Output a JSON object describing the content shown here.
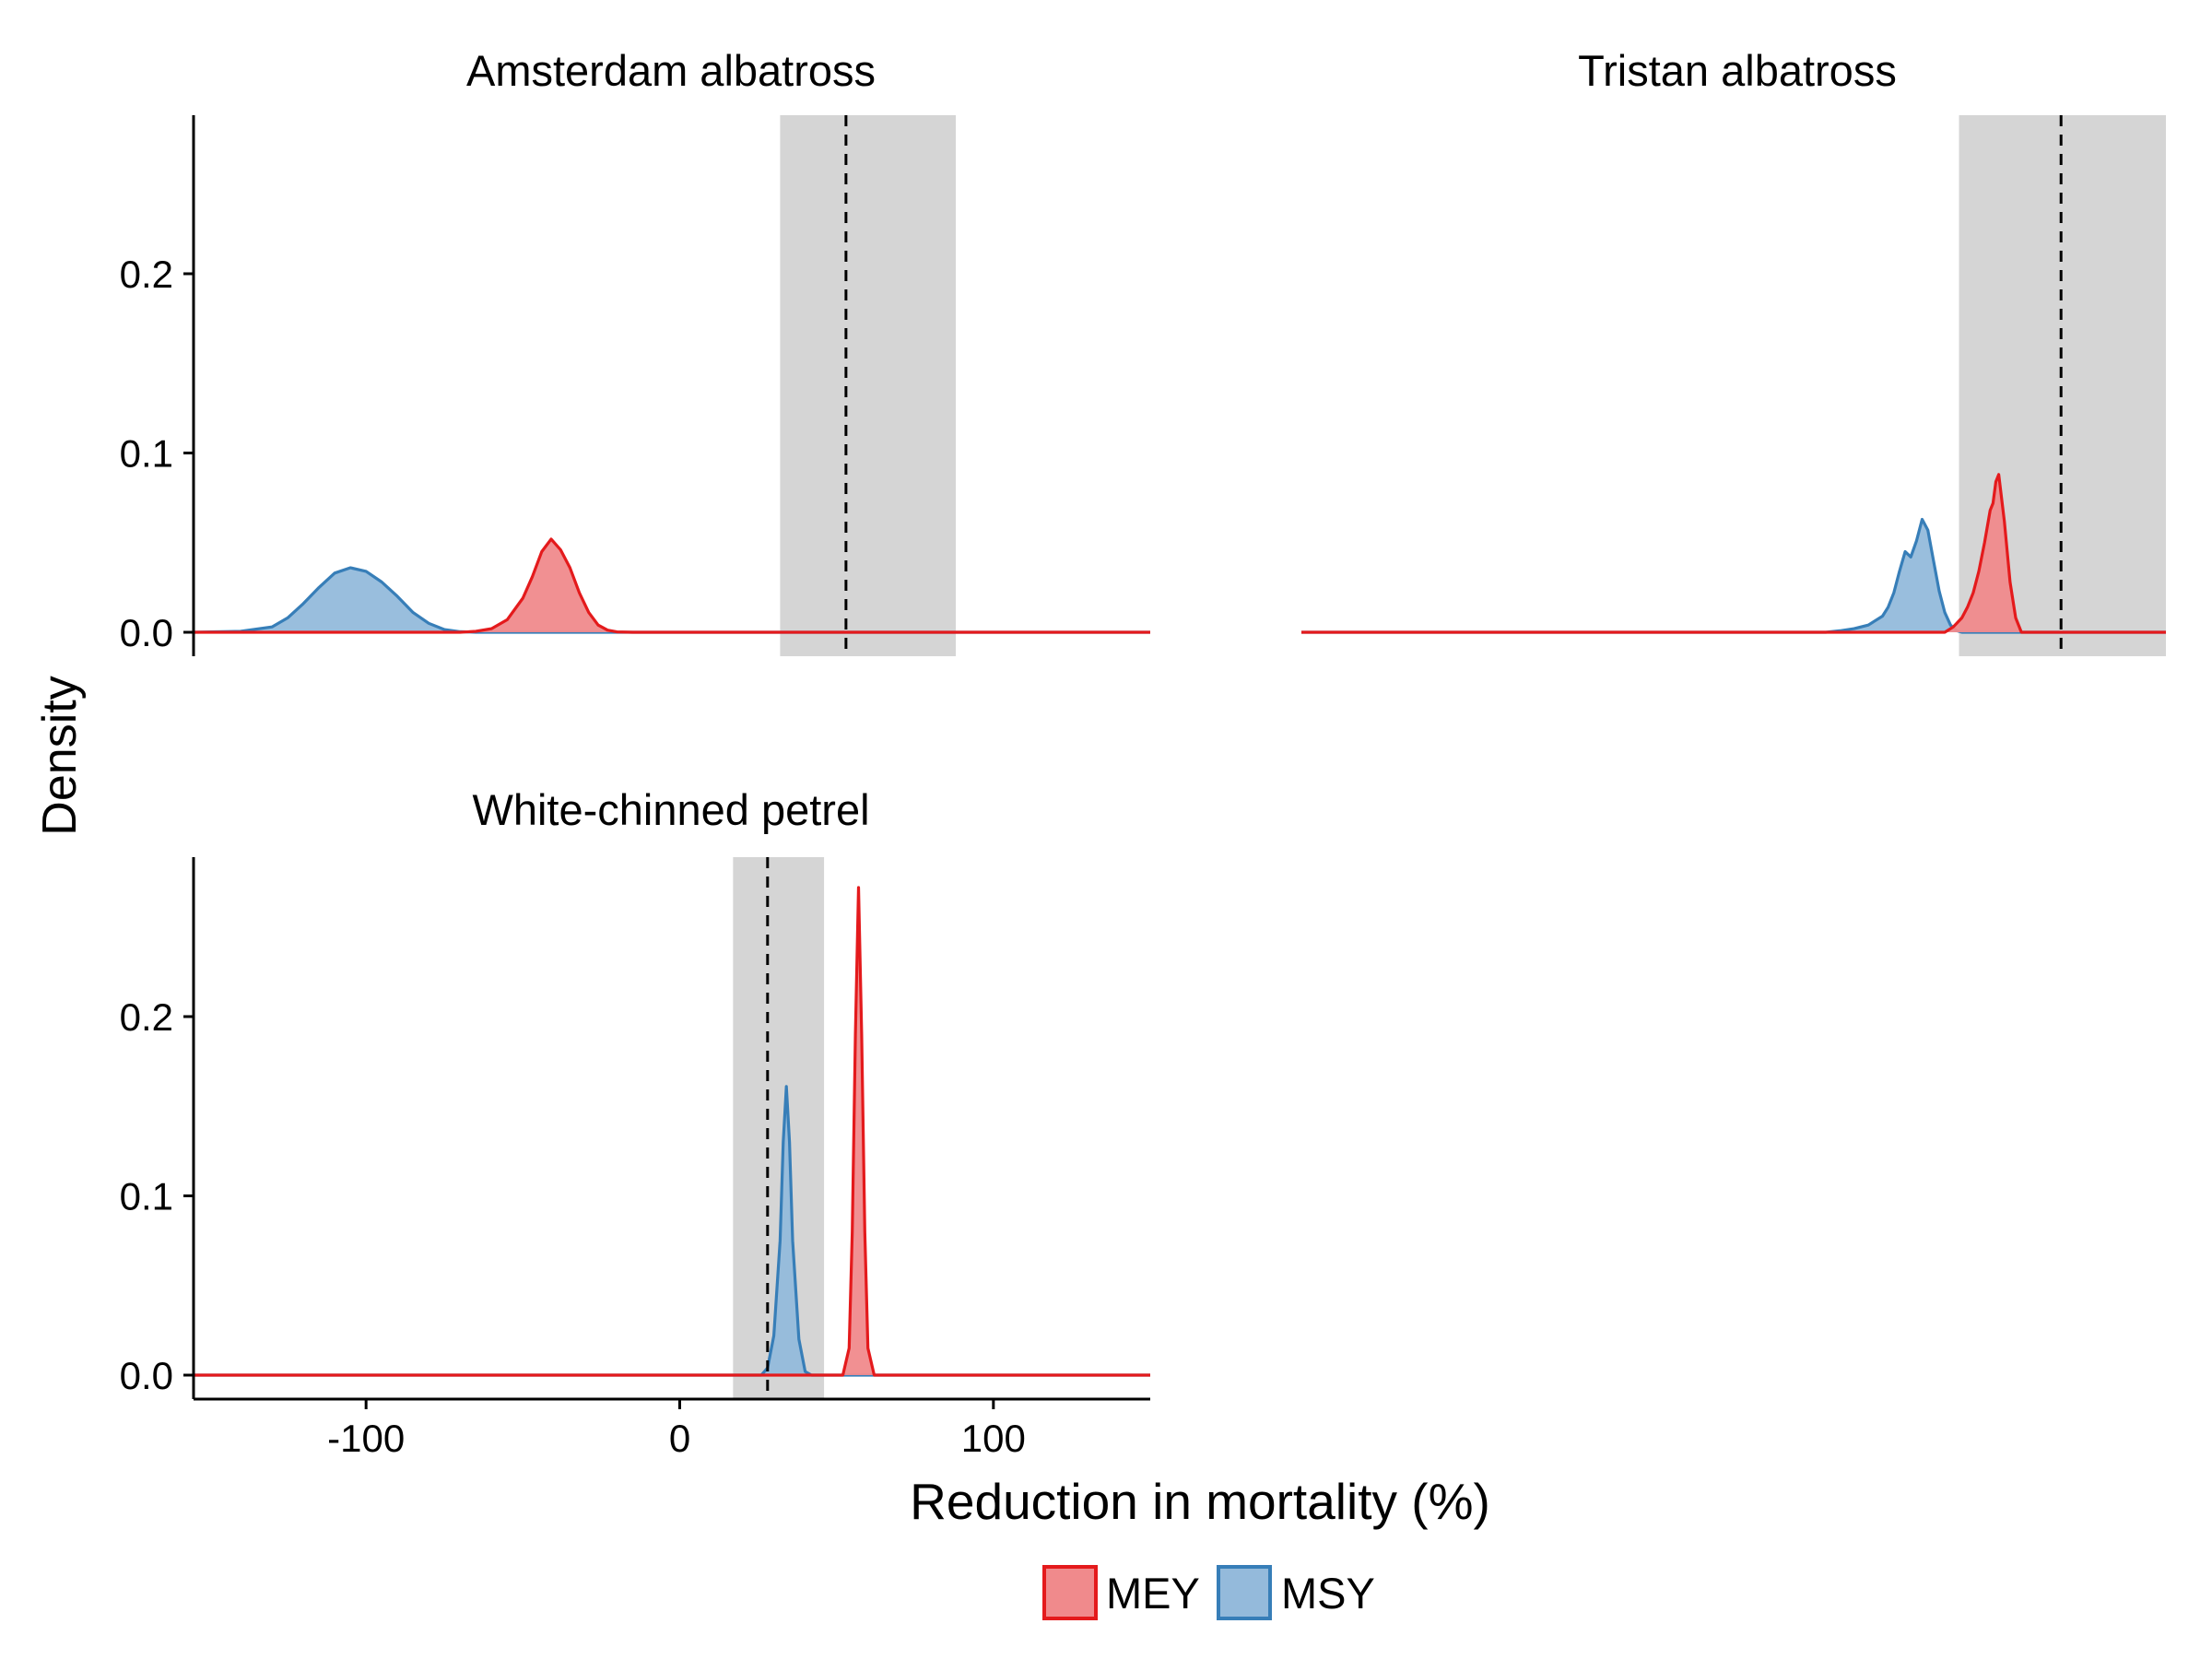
{
  "chart_data": {
    "type": "area",
    "ylabel": "Density",
    "xlabel": "Reduction in mortality (%)",
    "xlim": [
      -155,
      150
    ],
    "ylim": [
      0,
      0.28
    ],
    "x_ticks": [
      -100,
      0,
      100
    ],
    "x_tick_labels": [
      "-100",
      "0",
      "100"
    ],
    "y_ticks": [
      0.0,
      0.1,
      0.2
    ],
    "y_tick_labels": [
      "0.0",
      "0.1",
      "0.2"
    ],
    "grid": false,
    "legend": {
      "placement": "bottom",
      "entries": [
        {
          "name": "MEY",
          "fill": "#F08A8C",
          "stroke": "#E41A1C"
        },
        {
          "name": "MSY",
          "fill": "#94BADB",
          "stroke": "#377EB8"
        }
      ]
    },
    "colors": {
      "MEY": "#E41A1C",
      "MSY": "#377EB8",
      "band": "#D5D5D5"
    },
    "panels": [
      {
        "title": "Amsterdam albatross",
        "reference_line": 53,
        "reference_band": [
          32,
          88
        ],
        "series": [
          {
            "name": "MSY",
            "x": [
              -155,
              -140,
              -130,
              -125,
              -120,
              -115,
              -110,
              -105,
              -100,
              -95,
              -90,
              -85,
              -80,
              -75,
              -70,
              -65,
              -60,
              -55,
              150
            ],
            "y": [
              0,
              0.0005,
              0.003,
              0.008,
              0.016,
              0.025,
              0.033,
              0.036,
              0.034,
              0.028,
              0.02,
              0.011,
              0.005,
              0.0015,
              0.0003,
              0,
              0,
              0,
              0
            ]
          },
          {
            "name": "MEY",
            "x": [
              -155,
              -70,
              -65,
              -60,
              -55,
              -50,
              -47,
              -44,
              -41,
              -38,
              -35,
              -32,
              -29,
              -26,
              -23,
              -20,
              -15,
              150
            ],
            "y": [
              0,
              0,
              0.0005,
              0.002,
              0.007,
              0.019,
              0.031,
              0.045,
              0.052,
              0.046,
              0.036,
              0.022,
              0.011,
              0.004,
              0.0012,
              0.0002,
              0,
              0
            ]
          }
        ]
      },
      {
        "title": "Tristan albatross",
        "reference_line": 113,
        "reference_band": [
          77,
          150
        ],
        "series": [
          {
            "name": "MSY",
            "x": [
              -155,
              30,
              35,
              40,
              45,
              47,
              50,
              52,
              54,
              56,
              58,
              60,
              62,
              64,
              66,
              68,
              70,
              72,
              74,
              76,
              78,
              150
            ],
            "y": [
              0,
              0,
              0.0008,
              0.002,
              0.004,
              0.006,
              0.009,
              0.014,
              0.022,
              0.034,
              0.045,
              0.042,
              0.051,
              0.063,
              0.057,
              0.04,
              0.023,
              0.011,
              0.004,
              0.001,
              0,
              0
            ]
          },
          {
            "name": "MEY",
            "x": [
              -155,
              72,
              75,
              78,
              80,
              82,
              84,
              86,
              88,
              89,
              90,
              91,
              93,
              95,
              97,
              99,
              150
            ],
            "y": [
              0,
              0,
              0.003,
              0.008,
              0.014,
              0.022,
              0.034,
              0.05,
              0.068,
              0.072,
              0.084,
              0.088,
              0.062,
              0.028,
              0.008,
              0,
              0
            ]
          }
        ]
      },
      {
        "title": "White-chinned petrel",
        "reference_line": 28,
        "reference_band": [
          17,
          46
        ],
        "series": [
          {
            "name": "MSY",
            "x": [
              -155,
              26,
              28,
              30,
              32,
              33,
              34,
              35,
              36,
              38,
              40,
              42,
              150
            ],
            "y": [
              0,
              0,
              0.004,
              0.022,
              0.075,
              0.13,
              0.161,
              0.13,
              0.075,
              0.02,
              0.002,
              0,
              0
            ]
          },
          {
            "name": "MEY",
            "x": [
              -155,
              52,
              54,
              55,
              56,
              57,
              58,
              59,
              60,
              62,
              150
            ],
            "y": [
              0,
              0,
              0.015,
              0.08,
              0.19,
              0.272,
              0.19,
              0.08,
              0.015,
              0,
              0
            ]
          }
        ]
      }
    ]
  }
}
